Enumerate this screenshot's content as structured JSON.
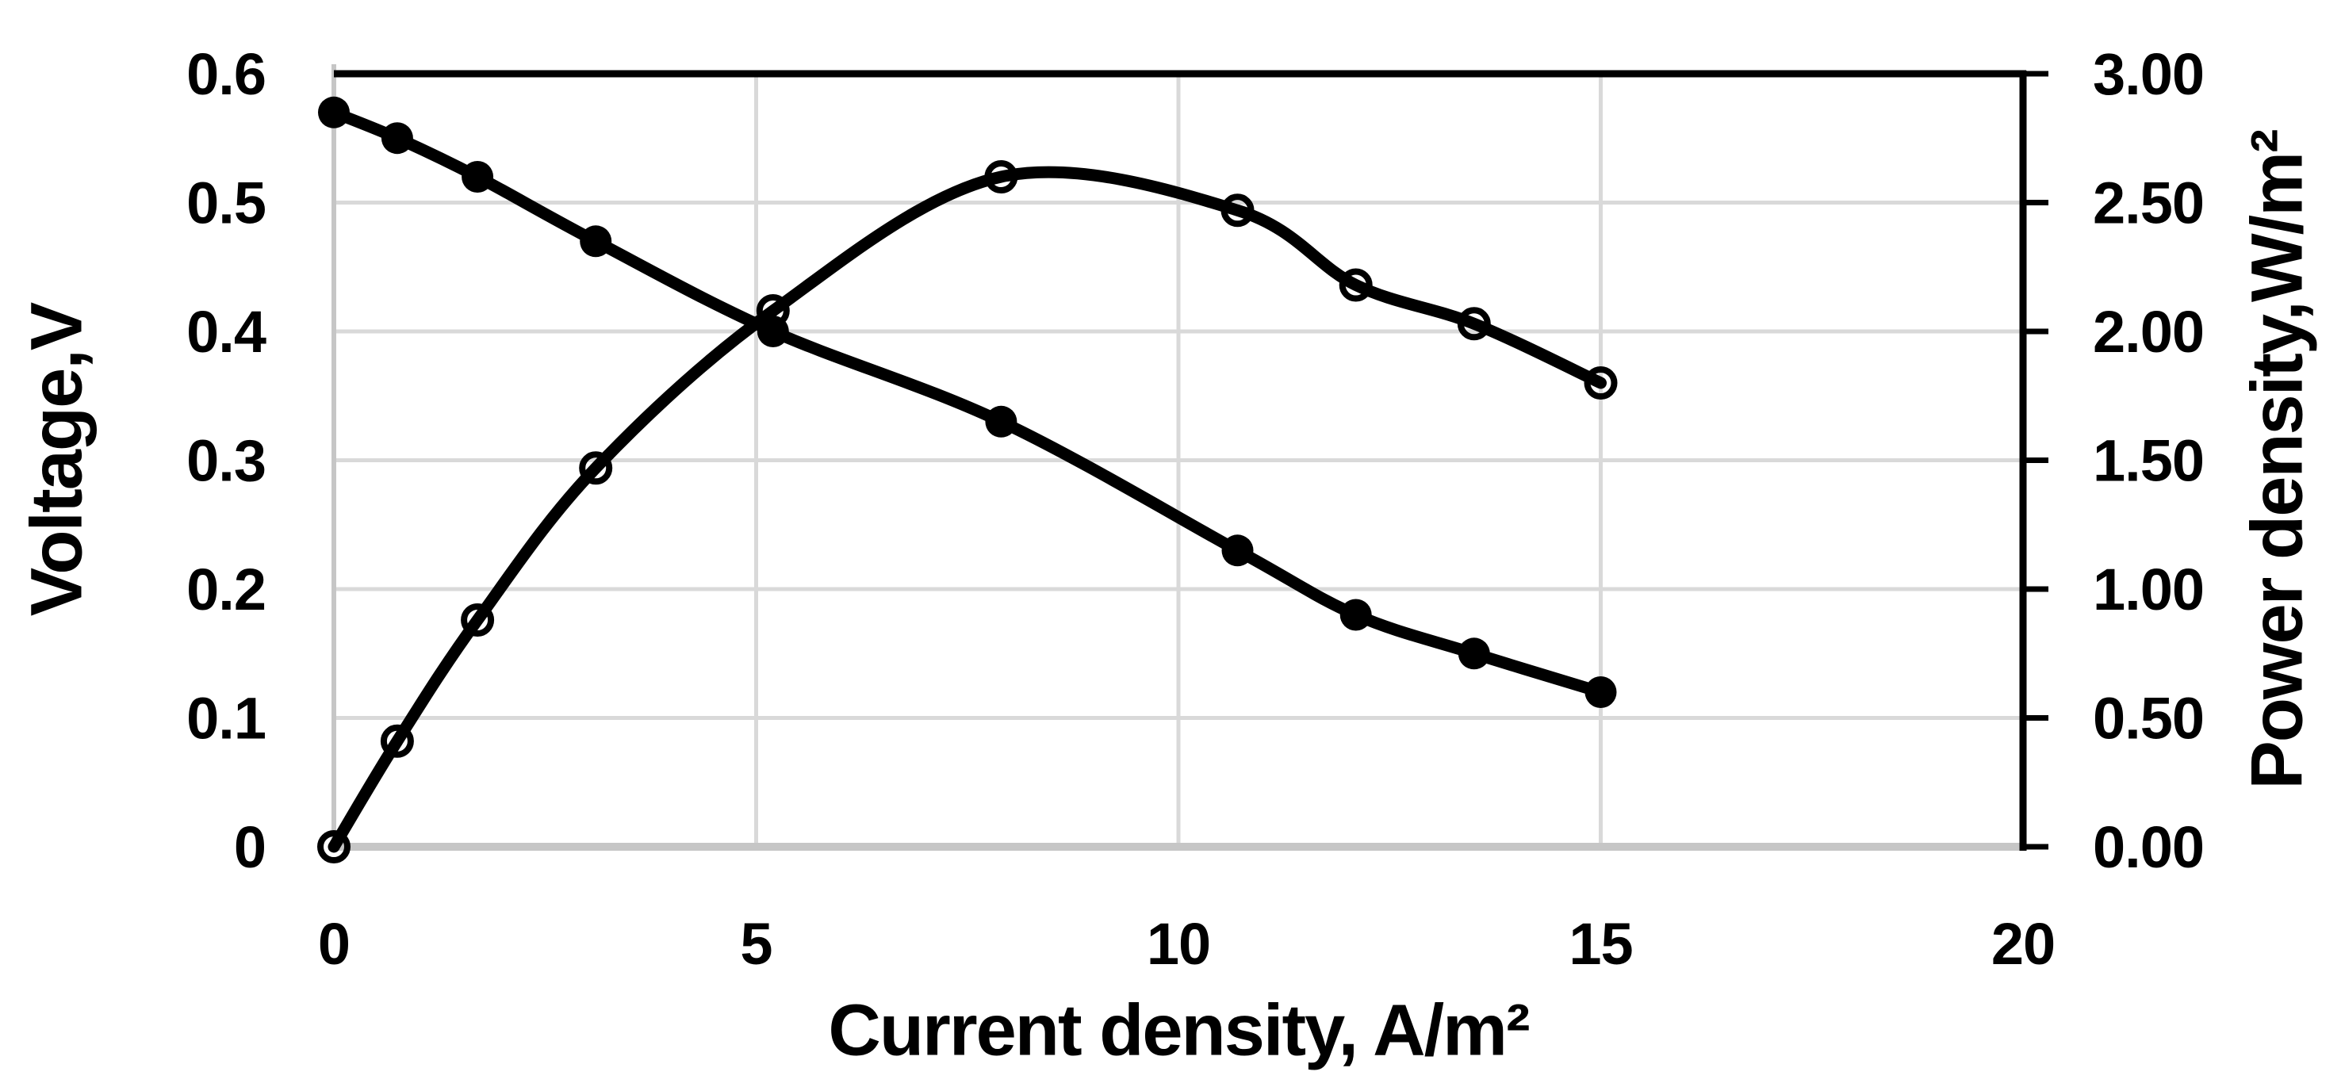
{
  "chart_data": {
    "type": "line",
    "title": "",
    "xlabel": "Current density, A/m²",
    "ylabel_left": "Voltage,V",
    "ylabel_right": "Power density,W/m²",
    "xlim": [
      0,
      20
    ],
    "ylim_left": [
      0,
      0.6
    ],
    "ylim_right": [
      0,
      3.0
    ],
    "grid": true,
    "legend_position": "none",
    "x_ticks": [
      {
        "label": "0",
        "value": 0
      },
      {
        "label": "5",
        "value": 5
      },
      {
        "label": "10",
        "value": 10
      },
      {
        "label": "15",
        "value": 15
      },
      {
        "label": "20",
        "value": 20
      }
    ],
    "y_left_ticks": [
      {
        "label": "0.6",
        "value": 0.6
      },
      {
        "label": "0.5",
        "value": 0.5
      },
      {
        "label": "0.4",
        "value": 0.4
      },
      {
        "label": "0.3",
        "value": 0.3
      },
      {
        "label": "0.2",
        "value": 0.2
      },
      {
        "label": "0.1",
        "value": 0.1
      },
      {
        "label": "0",
        "value": 0
      }
    ],
    "y_right_ticks": [
      {
        "label": "3.00",
        "value": 3.0
      },
      {
        "label": "2.50",
        "value": 2.5
      },
      {
        "label": "2.00",
        "value": 2.0
      },
      {
        "label": "1.50",
        "value": 1.5
      },
      {
        "label": "1.00",
        "value": 1.0
      },
      {
        "label": "0.50",
        "value": 0.5
      },
      {
        "label": "0.00",
        "value": 0.0
      }
    ],
    "series": [
      {
        "name": "Voltage",
        "axis": "left",
        "marker": "filled-circle",
        "smooth": true,
        "x": [
          0,
          0.75,
          1.7,
          3.1,
          5.2,
          7.9,
          10.7,
          12.1,
          13.5,
          15.0
        ],
        "y": [
          0.57,
          0.55,
          0.52,
          0.47,
          0.4,
          0.33,
          0.23,
          0.18,
          0.15,
          0.12
        ]
      },
      {
        "name": "Power density",
        "axis": "right",
        "marker": "open-circle",
        "smooth": true,
        "x": [
          0,
          0.75,
          1.7,
          3.1,
          5.2,
          7.9,
          10.7,
          12.1,
          13.5,
          15.0
        ],
        "y": [
          0.0,
          0.41,
          0.88,
          1.47,
          2.08,
          2.6,
          2.47,
          2.18,
          2.03,
          1.8
        ]
      }
    ]
  },
  "colors": {
    "series_line": "#000000",
    "marker_fill": "#000000",
    "gridline": "#d9d9d9",
    "axis_gray": "#c6c6c6",
    "axis_black": "#000000",
    "text": "#000000",
    "background": "#ffffff"
  }
}
